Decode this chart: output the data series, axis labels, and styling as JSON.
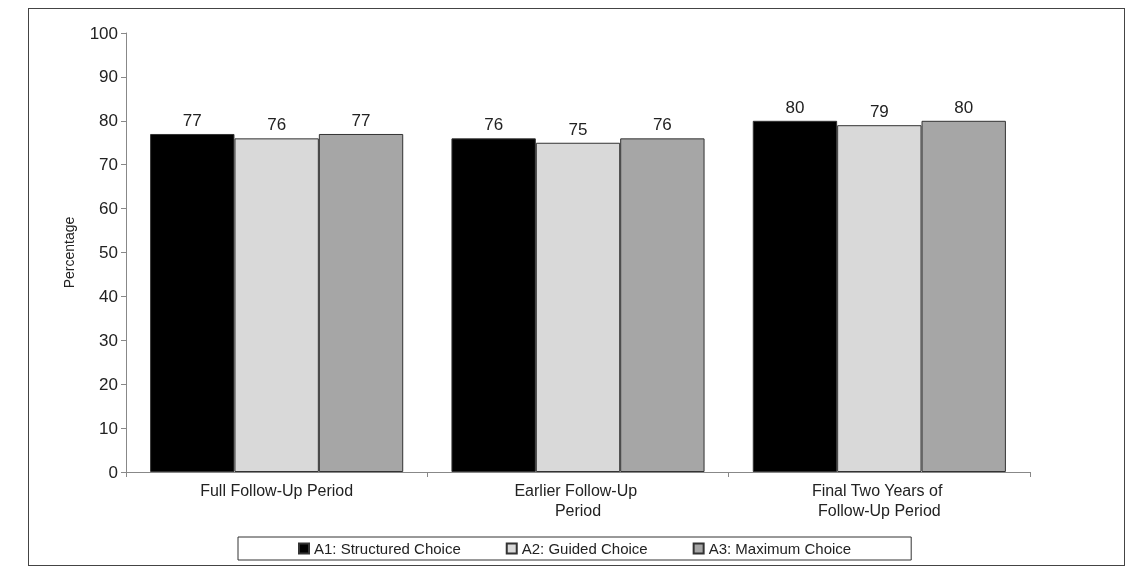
{
  "chart_data": {
    "type": "bar",
    "ylabel": "Percentage",
    "categories": [
      "Full Follow-Up Period",
      "Earlier Follow-Up Period",
      "Final Two Years of Follow-Up Period"
    ],
    "series": [
      {
        "name": "A1: Structured Choice",
        "color": "#000000",
        "values": [
          77,
          76,
          80
        ]
      },
      {
        "name": "A2: Guided Choice",
        "color": "#d9d9d9",
        "values": [
          76,
          75,
          79
        ]
      },
      {
        "name": "A3: Maximum Choice",
        "color": "#a6a6a6",
        "values": [
          77,
          76,
          80
        ]
      }
    ],
    "ylim": [
      0,
      100
    ],
    "yticks": [
      0,
      10,
      20,
      30,
      40,
      50,
      60,
      70,
      80,
      90,
      100
    ],
    "grid": false,
    "legend": "bottom",
    "data_labels": true
  }
}
